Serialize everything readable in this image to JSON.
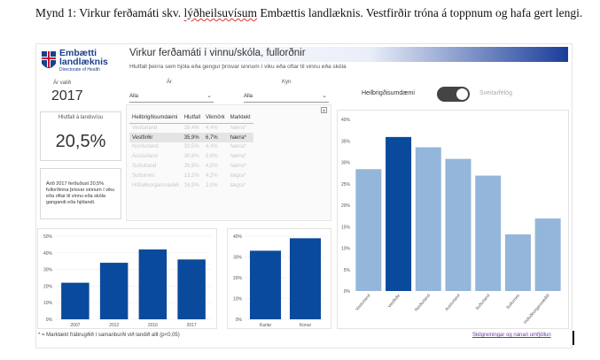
{
  "caption": {
    "before": "Mynd 1: Virkur ferðamáti skv. ",
    "squiggle": "lýðheilsuvísum",
    "after": " Embættis landlæknis. Vestfirðir tróna á toppnum og hafa gert lengi."
  },
  "logo": {
    "line1": "Embætti",
    "line2": "landlæknis",
    "line3": "Directorate of Health"
  },
  "header": {
    "title": "Virkur ferðamáti í vinnu/skóla, fullorðnir",
    "subtitle": "Hlutfall þeirra sem hjóla eða gengur þrisvar sinnum í viku eða oftar til vinnu eða skóla"
  },
  "filters": {
    "year_label": "Ár valið",
    "year_value": "2017",
    "ar_label": "Ár",
    "ar_value": "Alla",
    "kyn_label": "Kyn",
    "kyn_value": "Alla"
  },
  "toggle": {
    "left_label": "Heilbrigðisumdæmi",
    "right_label": "Sveitarfélög"
  },
  "kpi": {
    "title": "Hlutfall á landsvísu",
    "value": "20,5%"
  },
  "note": "Árið 2017 ferðuðust 20,5% fullorðinna þrisvar sinnum í viku eða oftar til vinnu eða skóla gangandi eða hjólandi.",
  "table": {
    "headers": [
      "Heilbrigðisumdæmi",
      "Hlutfall",
      "Vikmörk",
      "Marktekt"
    ],
    "rows": [
      [
        "Vesturland",
        "28,4%",
        "4,4%",
        "hærra*"
      ],
      [
        "Vestfirðir",
        "35,9%",
        "6,7%",
        "hærra*"
      ],
      [
        "Norðurland",
        "33,5%",
        "4,4%",
        "hærra*"
      ],
      [
        "Austurland",
        "30,8%",
        "5,6%",
        "hærra*"
      ],
      [
        "Suðurland",
        "26,9%",
        "4,5%",
        "hærra*"
      ],
      [
        "Suðurnes",
        "13,2%",
        "4,2%",
        "lægra*"
      ],
      [
        "Höfuðborgarsvæðið",
        "16,9%",
        "2,0%",
        "lægra*"
      ]
    ],
    "highlight_row": 1
  },
  "footer": {
    "footnote": "* = Marktækt frábrugðið í samanburði við landið allt (p<0,05)",
    "link": "Skilgreiningar og nánari umfjöllun"
  },
  "colors": {
    "dark_blue": "#0a4a9c",
    "light_blue": "#94b6da"
  },
  "chart_data": [
    {
      "type": "bar",
      "categories": [
        "2007",
        "2012",
        "2016",
        "2017"
      ],
      "values": [
        22,
        34,
        42,
        36
      ],
      "ylim": [
        0,
        50
      ],
      "yticks": [
        "0%",
        "10%",
        "20%",
        "30%",
        "40%",
        "50%"
      ],
      "grid": true
    },
    {
      "type": "bar",
      "categories": [
        "Karlar",
        "Konur"
      ],
      "values": [
        33,
        39
      ],
      "ylim": [
        0,
        40
      ],
      "yticks": [
        "0%",
        "10%",
        "20%",
        "30%",
        "40%"
      ],
      "grid": true
    },
    {
      "type": "bar",
      "categories": [
        "Vesturland",
        "Vestfirðir",
        "Norðurland",
        "Austurland",
        "Suðurland",
        "Suðurnes",
        "Höfuðborgarsvæðið"
      ],
      "values": [
        28.4,
        35.9,
        33.5,
        30.8,
        26.9,
        13.2,
        16.9
      ],
      "highlight": "Vestfirðir",
      "ylim": [
        0,
        40
      ],
      "yticks": [
        "0%",
        "5%",
        "10%",
        "15%",
        "20%",
        "25%",
        "30%",
        "35%",
        "40%"
      ],
      "grid": false
    }
  ]
}
